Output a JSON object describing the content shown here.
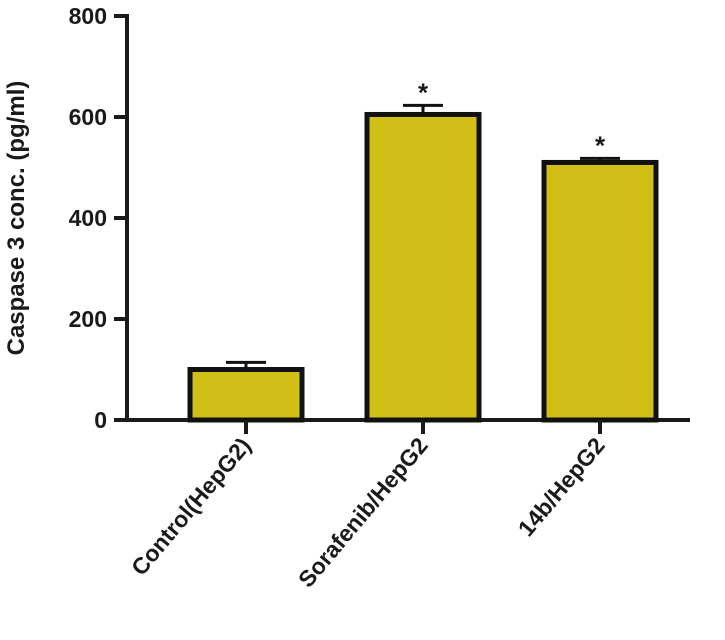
{
  "chart_data": {
    "type": "bar",
    "y_label": "Caspase 3 conc. (pg/ml)",
    "categories": [
      "Control(HepG2)",
      "Sorafenib/HepG2",
      "14b/HepG2"
    ],
    "values": [
      100,
      605,
      510
    ],
    "errors": [
      14,
      18,
      8
    ],
    "significance": [
      null,
      "*",
      "*"
    ],
    "color": "#cfbf17",
    "ylim": [
      0,
      800
    ],
    "yticks": [
      0,
      200,
      400,
      600,
      800
    ]
  }
}
